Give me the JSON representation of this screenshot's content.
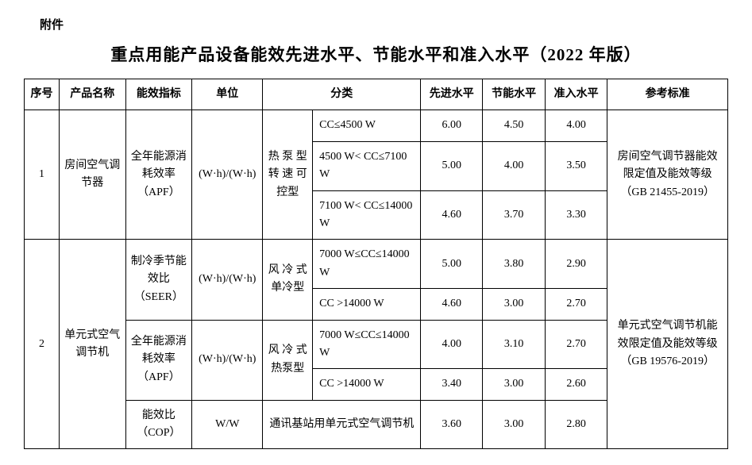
{
  "attachment_label": "附件",
  "title": "重点用能产品设备能效先进水平、节能水平和准入水平（2022 年版）",
  "headers": {
    "seq": "序号",
    "product": "产品名称",
    "metric": "能效指标",
    "unit": "单位",
    "category": "分类",
    "advanced": "先进水平",
    "energy_saving": "节能水平",
    "entry": "准入水平",
    "standard": "参考标准"
  },
  "rows": {
    "r1": {
      "seq": "1",
      "product": "房间空气调节器",
      "metric": "全年能源消耗效率（APF）",
      "unit": "(W·h)/(W·h)",
      "cat1": "热 泵 型转 速 可控型",
      "sub": [
        {
          "cat2": "CC≤4500 W",
          "adv": "6.00",
          "es": "4.50",
          "entry": "4.00"
        },
        {
          "cat2": "4500 W< CC≤7100 W",
          "adv": "5.00",
          "es": "4.00",
          "entry": "3.50"
        },
        {
          "cat2": "7100 W< CC≤14000 W",
          "adv": "4.60",
          "es": "3.70",
          "entry": "3.30"
        }
      ],
      "standard": "房间空气调节器能效限定值及能效等级（GB 21455-2019）"
    },
    "r2": {
      "seq": "2",
      "product": "单元式空气调节机",
      "metric1": "制冷季节能效比（SEER）",
      "unit1": "(W·h)/(W·h)",
      "cat1a": "风 冷 式单冷型",
      "sub1": [
        {
          "cat2": "7000 W≤CC≤14000 W",
          "adv": "5.00",
          "es": "3.80",
          "entry": "2.90"
        },
        {
          "cat2": "CC >14000 W",
          "adv": "4.60",
          "es": "3.00",
          "entry": "2.70"
        }
      ],
      "metric2": "全年能源消耗效率（APF）",
      "unit2": "(W·h)/(W·h)",
      "cat1b": "风 冷 式热泵型",
      "sub2": [
        {
          "cat2": "7000 W≤CC≤14000 W",
          "adv": "4.00",
          "es": "3.10",
          "entry": "2.70"
        },
        {
          "cat2": "CC >14000 W",
          "adv": "3.40",
          "es": "3.00",
          "entry": "2.60"
        }
      ],
      "metric3": "能效比（COP）",
      "unit3": "W/W",
      "cat3": "通讯基站用单元式空气调节机",
      "sub3": {
        "adv": "3.60",
        "es": "3.00",
        "entry": "2.80"
      },
      "standard": "单元式空气调节机能效限定值及能效等级（GB 19576-2019）"
    }
  }
}
